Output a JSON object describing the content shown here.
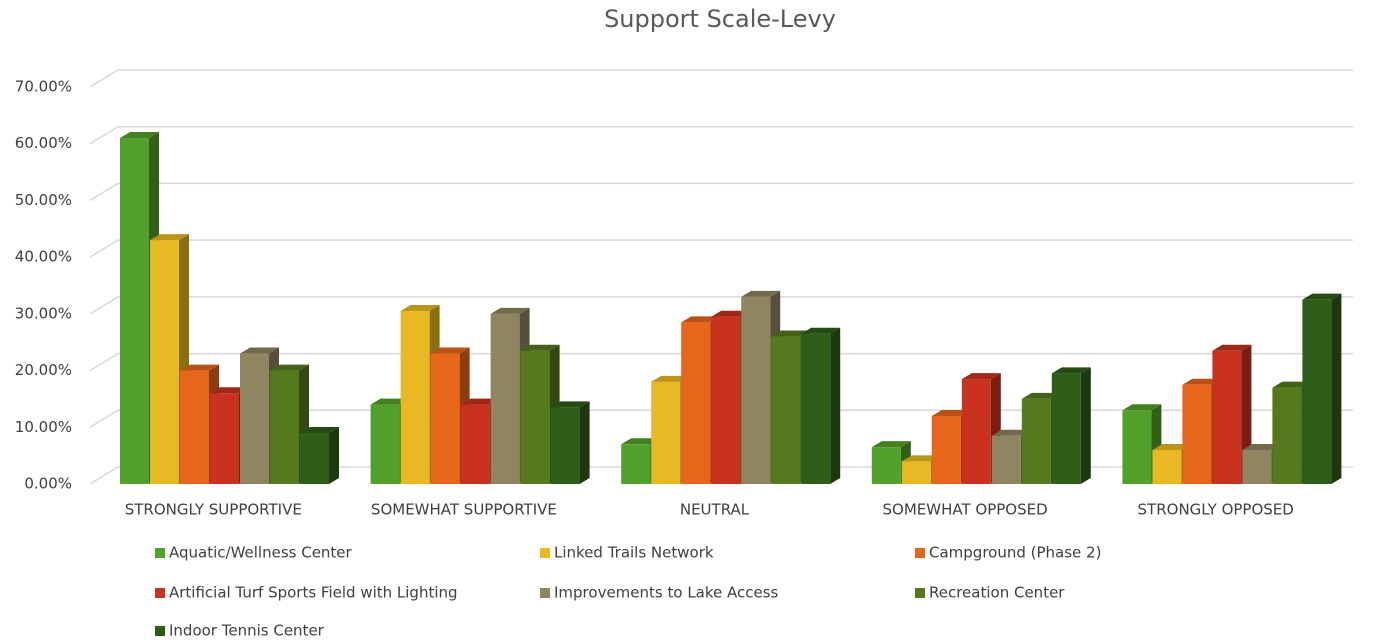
{
  "chart_data": {
    "type": "bar3d",
    "title": "Support Scale-Levy",
    "categories": [
      "STRONGLY SUPPORTIVE",
      "SOMEWHAT SUPPORTIVE",
      "NEUTRAL",
      "SOMEWHAT OPPOSED",
      "STRONGLY OPPOSED"
    ],
    "series": [
      {
        "name": "Aquatic/Wellness Center",
        "color": "#52a12a",
        "values": [
          61,
          14,
          7,
          6.5,
          13
        ]
      },
      {
        "name": "Linked Trails Network",
        "color": "#e8b922",
        "values": [
          43,
          30.5,
          18,
          4,
          6
        ]
      },
      {
        "name": "Campground (Phase 2)",
        "color": "#e8661a",
        "values": [
          20,
          23,
          28.5,
          12,
          17.5
        ]
      },
      {
        "name": "Artificial Turf Sports Field with Lighting",
        "color": "#c8321e",
        "values": [
          16,
          14,
          29.5,
          18.5,
          23.5
        ]
      },
      {
        "name": "Improvements to Lake Access",
        "color": "#8f8560",
        "values": [
          23,
          30,
          33,
          8.5,
          6
        ]
      },
      {
        "name": "Recreation Center",
        "color": "#557a1e",
        "values": [
          20,
          23.5,
          26,
          15,
          17
        ]
      },
      {
        "name": "Indoor Tennis Center",
        "color": "#2e5e18",
        "values": [
          9,
          13.5,
          26.5,
          19.5,
          32.5
        ]
      }
    ],
    "ylim": [
      0,
      70
    ],
    "yticks": [
      {
        "value": 0,
        "label": "0.00%"
      },
      {
        "value": 10,
        "label": "10.00%"
      },
      {
        "value": 20,
        "label": "20.00%"
      },
      {
        "value": 30,
        "label": "30.00%"
      },
      {
        "value": 40,
        "label": "40.00%"
      },
      {
        "value": 50,
        "label": "50.00%"
      },
      {
        "value": 60,
        "label": "60.00%"
      },
      {
        "value": 70,
        "label": "70.00%"
      }
    ],
    "grid": true,
    "legend": "bottom"
  }
}
